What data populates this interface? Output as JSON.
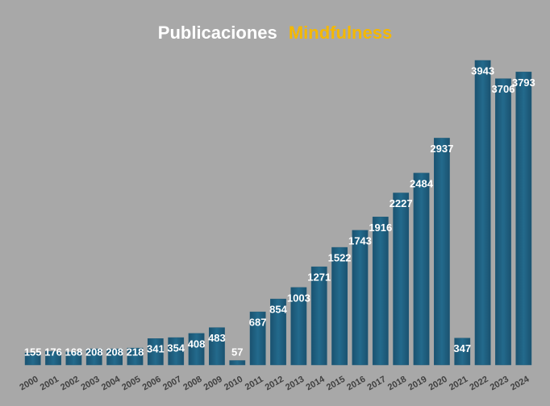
{
  "chart_data": {
    "type": "bar",
    "title": "Publicaciones",
    "title_highlight": "Mindfulness",
    "categories": [
      "2000",
      "2001",
      "2002",
      "2003",
      "2004",
      "2005",
      "2006",
      "2007",
      "2008",
      "2009",
      "2010",
      "2011",
      "2012",
      "2013",
      "2014",
      "2015",
      "2016",
      "2017",
      "2018",
      "2019",
      "2020",
      "2021",
      "2022",
      "2023",
      "2024"
    ],
    "values": [
      155,
      176,
      168,
      208,
      208,
      218,
      341,
      354,
      408,
      483,
      57,
      687,
      854,
      1003,
      1271,
      1522,
      1743,
      1916,
      2227,
      2484,
      2937,
      347,
      3943,
      3706,
      3793
    ],
    "color": "#1d5a78"
  }
}
